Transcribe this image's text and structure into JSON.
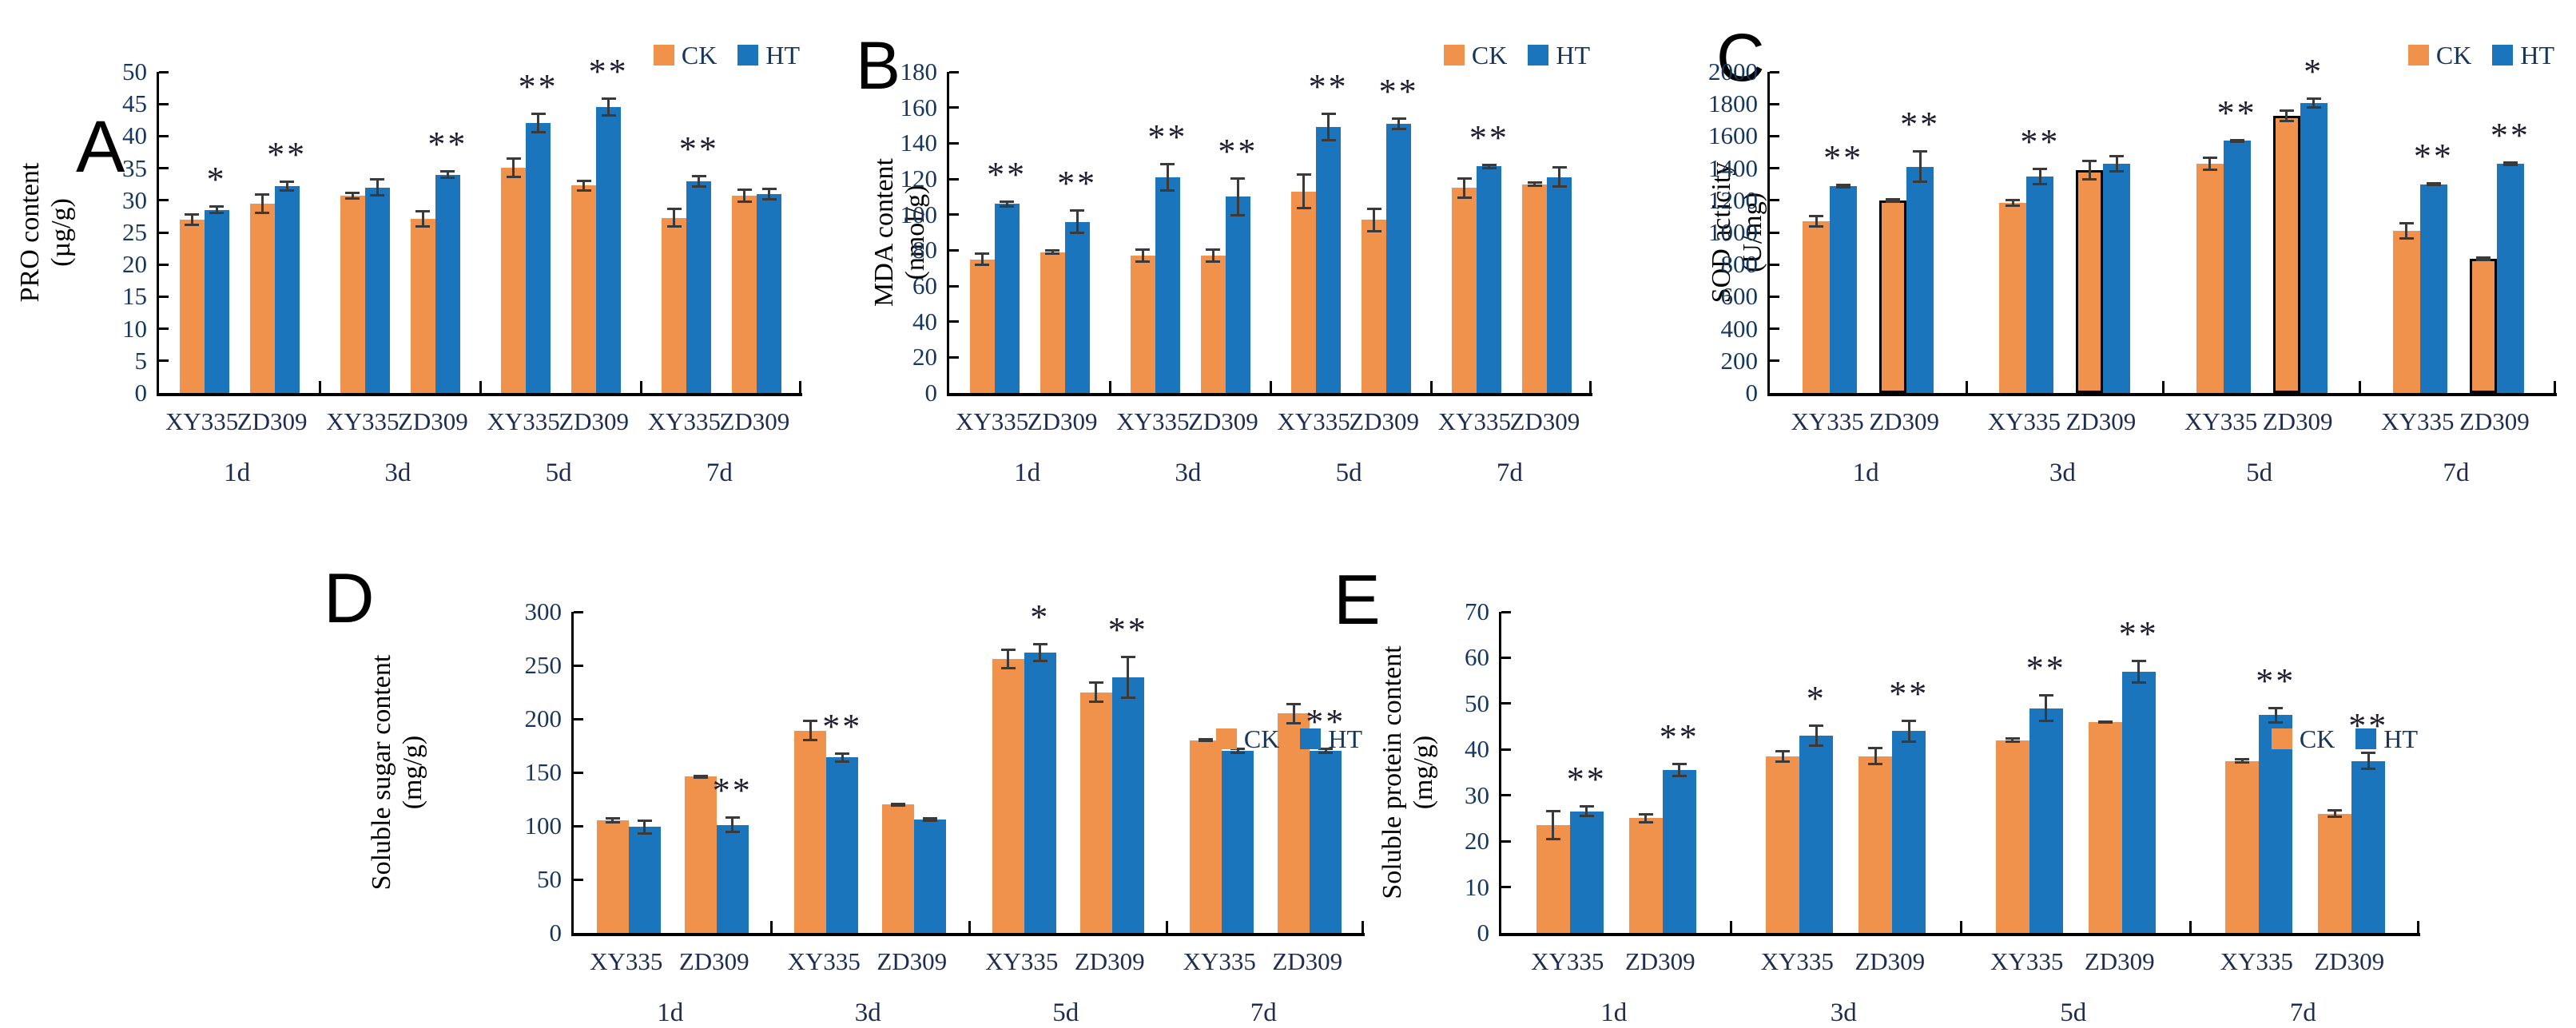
{
  "legend": {
    "items": [
      {
        "label": "CK"
      },
      {
        "label": "HT"
      }
    ]
  },
  "colors": {
    "ck": "#F0924C",
    "ht": "#1B75BC",
    "axis": "#000000",
    "tick_text": "#17365D",
    "error_bar": "#3A3A3A",
    "sig_marks": "#1D1D2E",
    "ck_outline": "#000000"
  },
  "chart_data": [
    {
      "id": "A",
      "panel_label": "A",
      "type": "bar",
      "title_lines": [
        "PRO content",
        "(µg/g)"
      ],
      "ylabel": "PRO content (µg/g)",
      "ylim": [
        0,
        50
      ],
      "ystep": 5,
      "grid": false,
      "legend": [
        "CK",
        "HT"
      ],
      "legend_position": "top-right",
      "day_groups": [
        {
          "day": "1d",
          "entries": [
            {
              "variety": "XY335",
              "ck": 27.0,
              "ck_err": 1.0,
              "ht": 28.5,
              "ht_err": 0.7,
              "sig": "*",
              "ck_outlined": false
            },
            {
              "variety": "ZD309",
              "ck": 29.5,
              "ck_err": 1.6,
              "ht": 32.2,
              "ht_err": 0.9,
              "sig": "**",
              "ck_outlined": false
            }
          ]
        },
        {
          "day": "3d",
          "entries": [
            {
              "variety": "XY335",
              "ck": 30.7,
              "ck_err": 0.6,
              "ht": 32.0,
              "ht_err": 1.4,
              "sig": "",
              "ck_outlined": false
            },
            {
              "variety": "ZD309",
              "ck": 27.1,
              "ck_err": 1.4,
              "ht": 34.0,
              "ht_err": 0.7,
              "sig": "**",
              "ck_outlined": false
            }
          ]
        },
        {
          "day": "5d",
          "entries": [
            {
              "variety": "XY335",
              "ck": 35.1,
              "ck_err": 1.6,
              "ht": 42.0,
              "ht_err": 1.6,
              "sig": "**",
              "ck_outlined": false
            },
            {
              "variety": "ZD309",
              "ck": 32.3,
              "ck_err": 0.9,
              "ht": 44.5,
              "ht_err": 1.5,
              "sig": "**",
              "ck_outlined": false
            }
          ]
        },
        {
          "day": "7d",
          "entries": [
            {
              "variety": "XY335",
              "ck": 27.3,
              "ck_err": 1.5,
              "ht": 33.0,
              "ht_err": 1.0,
              "sig": "**",
              "ck_outlined": false
            },
            {
              "variety": "ZD309",
              "ck": 30.7,
              "ck_err": 1.1,
              "ht": 31.0,
              "ht_err": 1.0,
              "sig": "",
              "ck_outlined": false
            }
          ]
        }
      ]
    },
    {
      "id": "B",
      "panel_label": "B",
      "type": "bar",
      "title_lines": [
        "MDA content",
        "(nmol/g)"
      ],
      "ylabel": "MDA content (nmol/g)",
      "ylim": [
        0,
        180
      ],
      "ystep": 20,
      "grid": false,
      "legend": [
        "CK",
        "HT"
      ],
      "legend_position": "top-right",
      "day_groups": [
        {
          "day": "1d",
          "entries": [
            {
              "variety": "XY335",
              "ck": 75,
              "ck_err": 4,
              "ht": 106,
              "ht_err": 2,
              "sig": "**",
              "ck_outlined": false
            },
            {
              "variety": "ZD309",
              "ck": 79,
              "ck_err": 1.5,
              "ht": 96,
              "ht_err": 7,
              "sig": "**",
              "ck_outlined": false
            }
          ]
        },
        {
          "day": "3d",
          "entries": [
            {
              "variety": "XY335",
              "ck": 77,
              "ck_err": 4,
              "ht": 121,
              "ht_err": 8,
              "sig": "**",
              "ck_outlined": false
            },
            {
              "variety": "ZD309",
              "ck": 77,
              "ck_err": 4,
              "ht": 110,
              "ht_err": 11,
              "sig": "**",
              "ck_outlined": false
            }
          ]
        },
        {
          "day": "5d",
          "entries": [
            {
              "variety": "XY335",
              "ck": 113,
              "ck_err": 10,
              "ht": 149,
              "ht_err": 8,
              "sig": "**",
              "ck_outlined": false
            },
            {
              "variety": "ZD309",
              "ck": 97,
              "ck_err": 7,
              "ht": 151,
              "ht_err": 3.5,
              "sig": "**",
              "ck_outlined": false
            }
          ]
        },
        {
          "day": "7d",
          "entries": [
            {
              "variety": "XY335",
              "ck": 115,
              "ck_err": 6,
              "ht": 127,
              "ht_err": 1.5,
              "sig": "**",
              "ck_outlined": false
            },
            {
              "variety": "ZD309",
              "ck": 117,
              "ck_err": 1.5,
              "ht": 121,
              "ht_err": 6,
              "sig": "",
              "ck_outlined": false
            }
          ]
        }
      ]
    },
    {
      "id": "C",
      "panel_label": "C",
      "type": "bar",
      "title_lines": [
        "SOD acticity",
        "(U/mg)"
      ],
      "ylabel": "SOD acticity (U/mg)",
      "ylim": [
        0,
        2000
      ],
      "ystep": 200,
      "grid": false,
      "legend": [
        "CK",
        "HT"
      ],
      "legend_position": "top-right",
      "day_groups": [
        {
          "day": "1d",
          "entries": [
            {
              "variety": "XY335",
              "ck": 1070,
              "ck_err": 40,
              "ht": 1290,
              "ht_err": 15,
              "sig": "**",
              "ck_outlined": false
            },
            {
              "variety": "ZD309",
              "ck": 1200,
              "ck_err": 15,
              "ht": 1410,
              "ht_err": 100,
              "sig": "**",
              "ck_outlined": true
            }
          ]
        },
        {
          "day": "3d",
          "entries": [
            {
              "variety": "XY335",
              "ck": 1185,
              "ck_err": 25,
              "ht": 1350,
              "ht_err": 55,
              "sig": "**",
              "ck_outlined": false
            },
            {
              "variety": "ZD309",
              "ck": 1390,
              "ck_err": 65,
              "ht": 1430,
              "ht_err": 55,
              "sig": "",
              "ck_outlined": true
            }
          ]
        },
        {
          "day": "5d",
          "entries": [
            {
              "variety": "XY335",
              "ck": 1430,
              "ck_err": 45,
              "ht": 1570,
              "ht_err": 12,
              "sig": "**",
              "ck_outlined": false
            },
            {
              "variety": "ZD309",
              "ck": 1725,
              "ck_err": 40,
              "ht": 1805,
              "ht_err": 35,
              "sig": "*",
              "ck_outlined": true
            }
          ]
        },
        {
          "day": "7d",
          "entries": [
            {
              "variety": "XY335",
              "ck": 1010,
              "ck_err": 55,
              "ht": 1300,
              "ht_err": 12,
              "sig": "**",
              "ck_outlined": false
            },
            {
              "variety": "ZD309",
              "ck": 835,
              "ck_err": 15,
              "ht": 1430,
              "ht_err": 15,
              "sig": "**",
              "ck_outlined": true
            }
          ]
        }
      ]
    },
    {
      "id": "D",
      "panel_label": "D",
      "type": "bar",
      "title_lines": [
        "Soluble sugar content",
        "(mg/g)"
      ],
      "ylabel": "Soluble sugar content (mg/g)",
      "ylim": [
        0,
        300
      ],
      "ystep": 50,
      "grid": false,
      "legend": [
        "CK",
        "HT"
      ],
      "legend_position": "top-right",
      "day_groups": [
        {
          "day": "1d",
          "entries": [
            {
              "variety": "XY335",
              "ck": 105,
              "ck_err": 3,
              "ht": 99,
              "ht_err": 7,
              "sig": "",
              "ck_outlined": false
            },
            {
              "variety": "ZD309",
              "ck": 146,
              "ck_err": 2,
              "ht": 101,
              "ht_err": 8,
              "sig": "**",
              "ck_outlined": false
            }
          ]
        },
        {
          "day": "3d",
          "entries": [
            {
              "variety": "XY335",
              "ck": 189,
              "ck_err": 10,
              "ht": 164,
              "ht_err": 5,
              "sig": "**",
              "ck_outlined": false
            },
            {
              "variety": "ZD309",
              "ck": 120,
              "ck_err": 2,
              "ht": 106,
              "ht_err": 2,
              "sig": "",
              "ck_outlined": false
            }
          ]
        },
        {
          "day": "5d",
          "entries": [
            {
              "variety": "XY335",
              "ck": 256,
              "ck_err": 10,
              "ht": 262,
              "ht_err": 9,
              "sig": "*",
              "ck_outlined": false
            },
            {
              "variety": "ZD309",
              "ck": 225,
              "ck_err": 10,
              "ht": 239,
              "ht_err": 20,
              "sig": "**",
              "ck_outlined": false
            }
          ]
        },
        {
          "day": "7d",
          "entries": [
            {
              "variety": "XY335",
              "ck": 180,
              "ck_err": 2,
              "ht": 170,
              "ht_err": 3,
              "sig": "",
              "ck_outlined": false
            },
            {
              "variety": "ZD309",
              "ck": 205,
              "ck_err": 10,
              "ht": 170,
              "ht_err": 3,
              "sig": "**",
              "ck_outlined": false
            }
          ]
        }
      ]
    },
    {
      "id": "E",
      "panel_label": "E",
      "type": "bar",
      "title_lines": [
        "Soluble protein content",
        "(mg/g)"
      ],
      "ylabel": "Soluble protein content (mg/g)",
      "ylim": [
        0,
        70
      ],
      "ystep": 10,
      "grid": false,
      "legend": [
        "CK",
        "HT"
      ],
      "legend_position": "top-right",
      "day_groups": [
        {
          "day": "1d",
          "entries": [
            {
              "variety": "XY335",
              "ck": 23.5,
              "ck_err": 3.3,
              "ht": 26.5,
              "ht_err": 1.3,
              "sig": "**",
              "ck_outlined": false
            },
            {
              "variety": "ZD309",
              "ck": 25.0,
              "ck_err": 1.2,
              "ht": 35.5,
              "ht_err": 1.6,
              "sig": "**",
              "ck_outlined": false
            }
          ]
        },
        {
          "day": "3d",
          "entries": [
            {
              "variety": "XY335",
              "ck": 38.5,
              "ck_err": 1.4,
              "ht": 43.0,
              "ht_err": 2.4,
              "sig": "*",
              "ck_outlined": false
            },
            {
              "variety": "ZD309",
              "ck": 38.5,
              "ck_err": 2.0,
              "ht": 44.0,
              "ht_err": 2.5,
              "sig": "**",
              "ck_outlined": false
            }
          ]
        },
        {
          "day": "5d",
          "entries": [
            {
              "variety": "XY335",
              "ck": 42.0,
              "ck_err": 0.6,
              "ht": 49.0,
              "ht_err": 3.0,
              "sig": "**",
              "ck_outlined": false
            },
            {
              "variety": "ZD309",
              "ck": 46.0,
              "ck_err": 0.4,
              "ht": 57.0,
              "ht_err": 2.6,
              "sig": "**",
              "ck_outlined": false
            }
          ]
        },
        {
          "day": "7d",
          "entries": [
            {
              "variety": "XY335",
              "ck": 37.5,
              "ck_err": 0.6,
              "ht": 47.5,
              "ht_err": 1.8,
              "sig": "**",
              "ck_outlined": false
            },
            {
              "variety": "ZD309",
              "ck": 26.0,
              "ck_err": 1.0,
              "ht": 37.5,
              "ht_err": 2.0,
              "sig": "**",
              "ck_outlined": false
            }
          ]
        }
      ]
    }
  ]
}
